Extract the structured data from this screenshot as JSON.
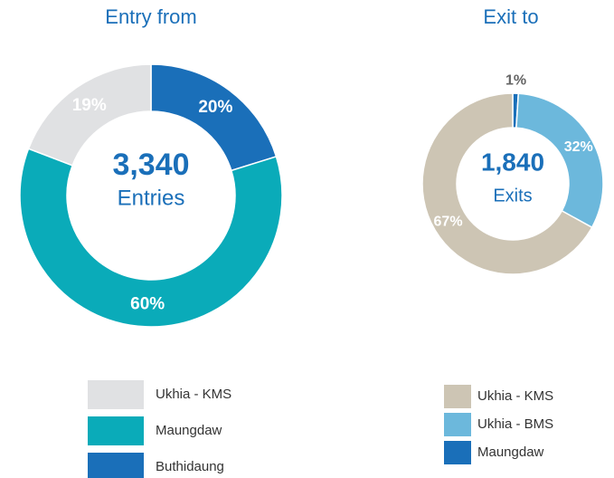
{
  "chart_data": [
    {
      "type": "donut",
      "title": "Entry from",
      "center_value": "3,340",
      "center_label": "Entries",
      "categories": [
        "Ukhia - KMS",
        "Maungdaw",
        "Buthidaung"
      ],
      "values": [
        19,
        60,
        20
      ],
      "value_labels": [
        "19%",
        "60%",
        "20%"
      ],
      "colors": [
        "#e0e1e3",
        "#0aabb9",
        "#1a6fb9"
      ]
    },
    {
      "type": "donut",
      "title": "Exit to",
      "center_value": "1,840",
      "center_label": "Exits",
      "categories": [
        "Ukhia - KMS",
        "Ukhia - BMS",
        "Maungdaw"
      ],
      "values": [
        67,
        32,
        1
      ],
      "value_labels": [
        "67%",
        "32%",
        "1%"
      ],
      "colors": [
        "#cdc5b4",
        "#6cb8dc",
        "#1a6fb9"
      ]
    }
  ]
}
